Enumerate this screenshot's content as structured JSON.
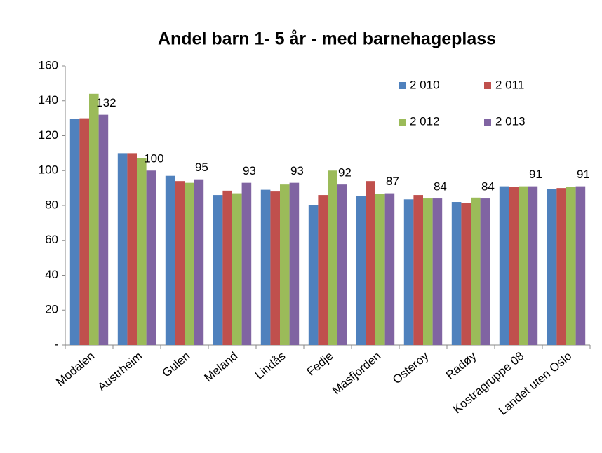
{
  "chart_data": {
    "type": "bar",
    "title": "Andel barn 1- 5 år - med barnehageplass",
    "categories": [
      "Modalen",
      "Austrheim",
      "Gulen",
      "Meland",
      "Lindås",
      "Fedje",
      "Masfjorden",
      "Osterøy",
      "Radøy",
      "Kostragruppe 08",
      "Landet uten Oslo"
    ],
    "series": [
      {
        "name": "2 010",
        "color": "#4f81bd",
        "values": [
          129.5,
          110,
          97,
          86,
          89,
          80,
          85.5,
          83.5,
          82,
          91,
          89.5
        ]
      },
      {
        "name": "2 011",
        "color": "#c0504d",
        "values": [
          130,
          110,
          94,
          88.5,
          88,
          86,
          94,
          86,
          81.5,
          90.5,
          90
        ]
      },
      {
        "name": "2 012",
        "color": "#9bbb59",
        "values": [
          144,
          107,
          93,
          87,
          92,
          100,
          86.5,
          84,
          84.5,
          91,
          90.5
        ]
      },
      {
        "name": "2 013",
        "color": "#8064a2",
        "values": [
          132,
          100,
          95,
          93,
          93,
          92,
          87,
          84,
          84,
          91,
          91
        ],
        "show_labels": true
      }
    ],
    "ylim": [
      0,
      160
    ],
    "yticks": [
      {
        "value": 0,
        "label": "-"
      },
      20,
      40,
      60,
      80,
      100,
      120,
      140,
      160
    ],
    "grid": false,
    "legend": "top-right"
  }
}
